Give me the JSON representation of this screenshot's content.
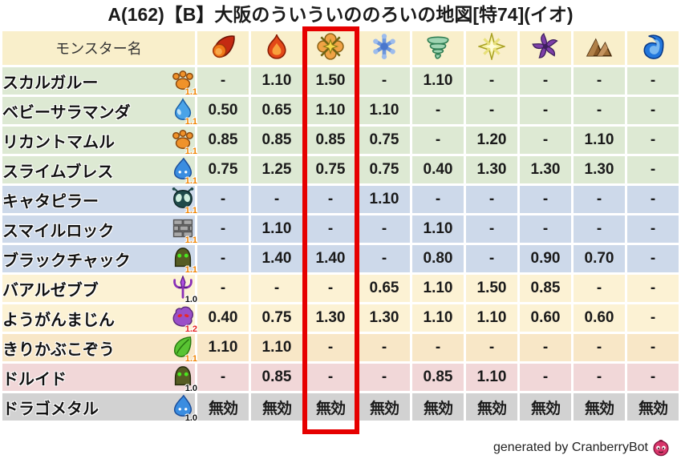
{
  "title": "A(162)【B】大阪のういういののろいの地図[特74](イオ)",
  "footer": {
    "text": "generated by CranberryBot",
    "icon": "cranberry-slime-icon"
  },
  "value_colors": {
    "dash": "#1a1a1a",
    "immune": "#1a1a1a",
    "strong_resist": "#2222cc",
    "resist": "#2b8fe6",
    "weak": "#f5881c",
    "very_weak": "#e62020"
  },
  "highlight": {
    "column_index": 2,
    "color": "#e60000"
  },
  "table": {
    "name_header": "モンスター名",
    "element_columns": [
      {
        "icon": "fireball-icon"
      },
      {
        "icon": "flame-icon"
      },
      {
        "icon": "explosion-icon"
      },
      {
        "icon": "snowflake-icon"
      },
      {
        "icon": "tornado-icon"
      },
      {
        "icon": "light-star-icon"
      },
      {
        "icon": "dark-pinwheel-icon"
      },
      {
        "icon": "mountain-icon"
      },
      {
        "icon": "wave-icon"
      }
    ],
    "rows": [
      {
        "name": "スカルガルー",
        "icon": "paw-icon",
        "multiplier": "1.1",
        "multiplier_color": "orange",
        "bg": "green",
        "values": [
          "-",
          "1.10",
          "1.50",
          "-",
          "1.10",
          "-",
          "-",
          "-",
          "-"
        ]
      },
      {
        "name": "ベビーサラマンダ",
        "icon": "water-drop-icon",
        "multiplier": "1.1",
        "multiplier_color": "orange",
        "bg": "green",
        "values": [
          "0.50",
          "0.65",
          "1.10",
          "1.10",
          "-",
          "-",
          "-",
          "-",
          "-"
        ]
      },
      {
        "name": "リカントマムル",
        "icon": "paw-icon",
        "multiplier": "1.1",
        "multiplier_color": "orange",
        "bg": "green",
        "values": [
          "0.85",
          "0.85",
          "0.85",
          "0.75",
          "-",
          "1.20",
          "-",
          "1.10",
          "-"
        ]
      },
      {
        "name": "スライムブレス",
        "icon": "slime-icon",
        "multiplier": "1.1",
        "multiplier_color": "orange",
        "bg": "green",
        "values": [
          "0.75",
          "1.25",
          "0.75",
          "0.75",
          "0.40",
          "1.30",
          "1.30",
          "1.30",
          "-"
        ]
      },
      {
        "name": "キャタピラー",
        "icon": "bug-icon",
        "multiplier": "1.1",
        "multiplier_color": "orange",
        "bg": "blue",
        "values": [
          "-",
          "-",
          "-",
          "1.10",
          "-",
          "-",
          "-",
          "-",
          "-"
        ]
      },
      {
        "name": "スマイルロック",
        "icon": "brick-icon",
        "multiplier": "1.1",
        "multiplier_color": "orange",
        "bg": "blue",
        "values": [
          "-",
          "1.10",
          "-",
          "-",
          "1.10",
          "-",
          "-",
          "-",
          "-"
        ]
      },
      {
        "name": "ブラックチャック",
        "icon": "dark-blob-icon",
        "multiplier": "1.1",
        "multiplier_color": "orange",
        "bg": "blue",
        "values": [
          "-",
          "1.40",
          "1.40",
          "-",
          "0.80",
          "-",
          "0.90",
          "0.70",
          "-"
        ]
      },
      {
        "name": "バアルゼブブ",
        "icon": "trident-icon",
        "multiplier": "1.0",
        "multiplier_color": "black",
        "bg": "cream",
        "values": [
          "-",
          "-",
          "-",
          "0.65",
          "1.10",
          "1.50",
          "0.85",
          "-",
          "-"
        ]
      },
      {
        "name": "ようがんまじん",
        "icon": "purple-monster-icon",
        "multiplier": "1.2",
        "multiplier_color": "red",
        "bg": "cream",
        "values": [
          "0.40",
          "0.75",
          "1.30",
          "1.30",
          "1.10",
          "1.10",
          "0.60",
          "0.60",
          "-"
        ]
      },
      {
        "name": "きりかぶこぞう",
        "icon": "leaf-icon",
        "multiplier": "1.1",
        "multiplier_color": "orange",
        "bg": "peach",
        "values": [
          "1.10",
          "1.10",
          "-",
          "-",
          "-",
          "-",
          "-",
          "-",
          "-"
        ]
      },
      {
        "name": "ドルイド",
        "icon": "dark-blob-icon",
        "multiplier": "1.0",
        "multiplier_color": "black",
        "bg": "pink",
        "values": [
          "-",
          "0.85",
          "-",
          "-",
          "0.85",
          "1.10",
          "-",
          "-",
          "-"
        ]
      },
      {
        "name": "ドラゴメタル",
        "icon": "slime-icon",
        "multiplier": "1.0",
        "multiplier_color": "black",
        "bg": "gray",
        "values": [
          "無効",
          "無効",
          "無効",
          "無効",
          "無効",
          "無効",
          "無効",
          "無効",
          "無効"
        ]
      }
    ]
  }
}
